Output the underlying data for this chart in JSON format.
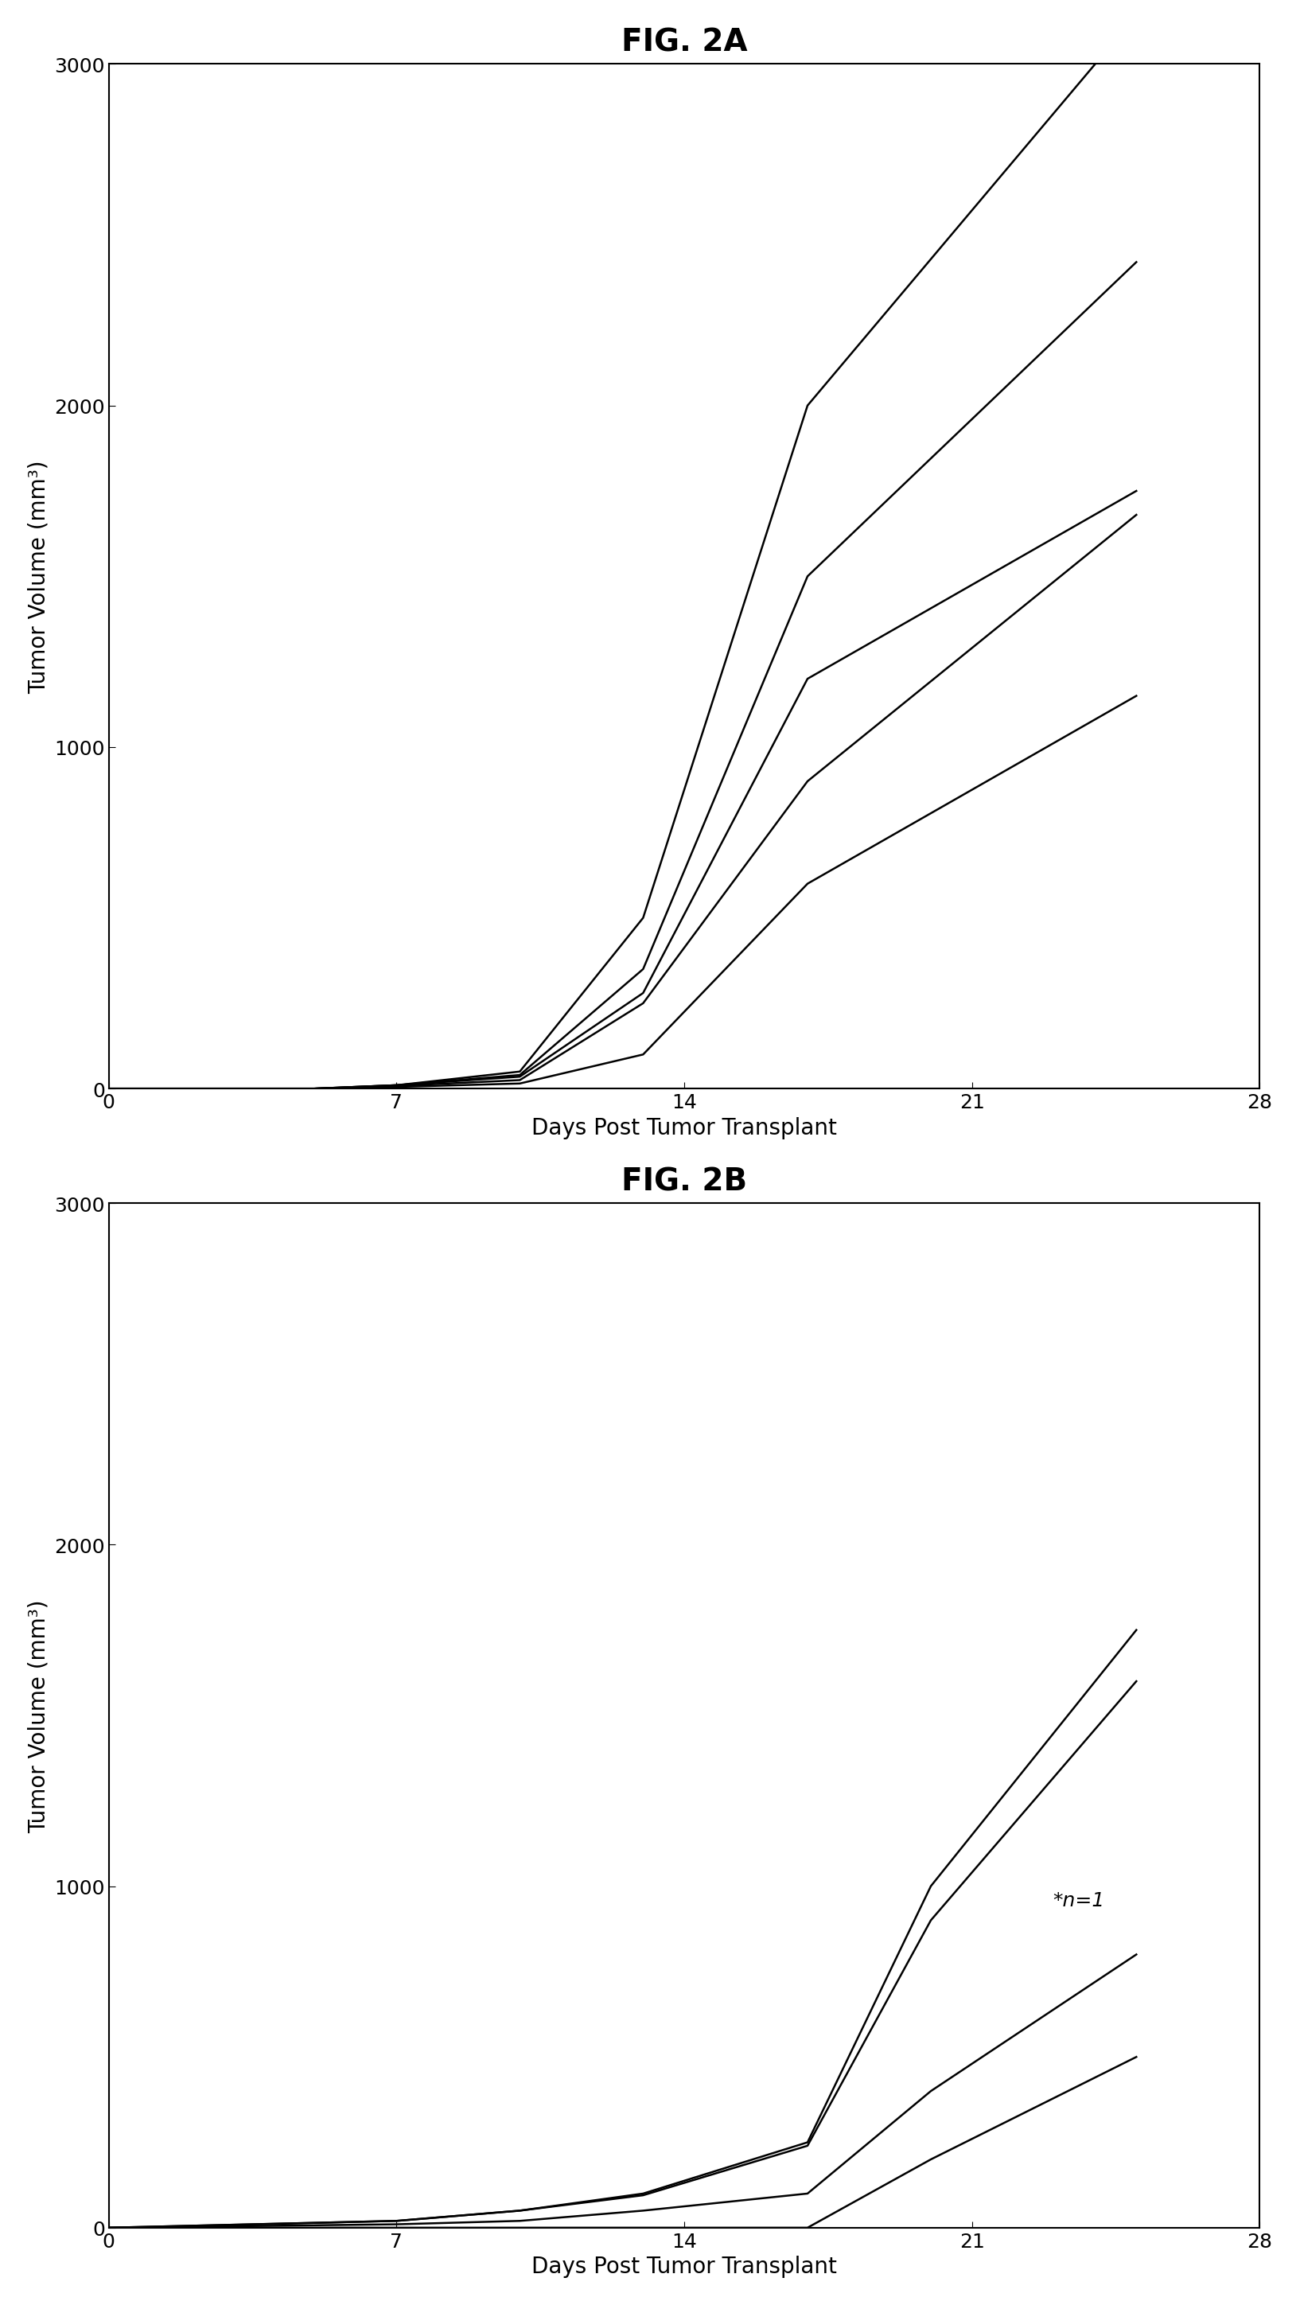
{
  "fig2a_title": "FIG. 2A",
  "fig2b_title": "FIG. 2B",
  "xlabel": "Days Post Tumor Transplant",
  "ylabel": "Tumor Volume (mm³)",
  "xlim": [
    0,
    28
  ],
  "ylim": [
    0,
    3000
  ],
  "xticks": [
    0,
    7,
    14,
    21,
    28
  ],
  "yticks": [
    0,
    1000,
    2000,
    3000
  ],
  "annotation_2b": "*n=1",
  "fig2a_lines": [
    [
      0,
      5,
      7,
      10,
      13,
      17,
      24
    ],
    [
      0,
      5,
      7,
      10,
      13,
      17,
      25
    ],
    [
      0,
      5,
      7,
      10,
      13,
      17,
      25
    ],
    [
      0,
      5,
      7,
      10,
      13,
      17,
      25
    ],
    [
      0,
      5,
      7,
      10,
      13,
      17,
      25
    ]
  ],
  "fig2a_values": [
    [
      0,
      0,
      10,
      50,
      500,
      2000,
      3000
    ],
    [
      0,
      0,
      10,
      40,
      350,
      1500,
      2420
    ],
    [
      0,
      0,
      10,
      35,
      280,
      1200,
      1750
    ],
    [
      0,
      0,
      8,
      25,
      250,
      900,
      1680
    ],
    [
      0,
      0,
      5,
      15,
      100,
      600,
      1150
    ]
  ],
  "fig2b_lines_x": [
    [
      0,
      7,
      10,
      13,
      17,
      20,
      25
    ],
    [
      0,
      7,
      10,
      13,
      17,
      20,
      25
    ],
    [
      0,
      7,
      10,
      13,
      17,
      20,
      25
    ],
    [
      0,
      7,
      10,
      13,
      17,
      20,
      25
    ]
  ],
  "fig2b_values": [
    [
      0,
      20,
      50,
      100,
      250,
      1000,
      1750
    ],
    [
      0,
      20,
      50,
      95,
      240,
      900,
      1600
    ],
    [
      0,
      10,
      20,
      50,
      100,
      400,
      800
    ],
    [
      0,
      0,
      0,
      0,
      0,
      200,
      500
    ]
  ],
  "line_color": "#000000",
  "line_width": 1.8,
  "bg_color": "#ffffff",
  "title_fontsize": 28,
  "label_fontsize": 20,
  "tick_fontsize": 18,
  "annotation_fontsize": 18
}
